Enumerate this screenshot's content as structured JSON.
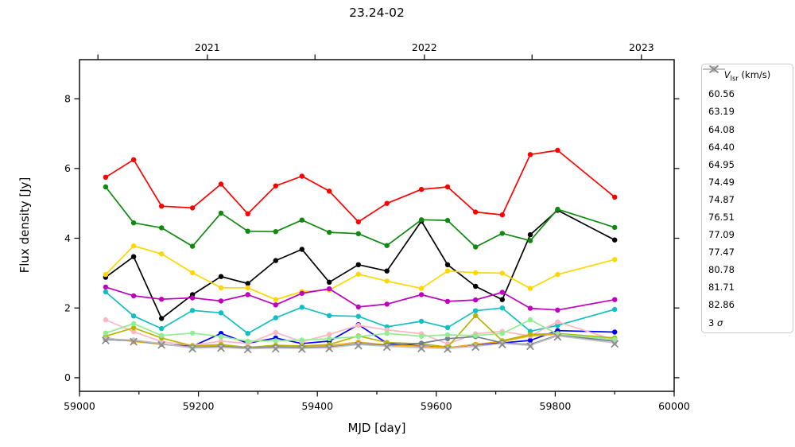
{
  "figure": {
    "title": "23.24-02",
    "xlabel": "MJD [day]",
    "ylabel": "Flux density [Jy]"
  },
  "legend": {
    "title_var": "V",
    "title_sub": "lsr",
    "title_unit": " (km/s)",
    "sigma_prefix": "3 ",
    "sigma_symbol": "σ"
  },
  "chart_data": {
    "type": "line",
    "title": "23.24-02",
    "xlabel": "MJD [day]",
    "ylabel": "Flux density [Jy]",
    "xlim": [
      59000,
      60000
    ],
    "ylim": [
      -0.39,
      9.12
    ],
    "grid": false,
    "legend_position": "outside-right",
    "legend_title": "V_lsr (km/s)",
    "x_ticks": {
      "major": [
        59000,
        59200,
        59400,
        59600,
        59800,
        60000
      ],
      "minor": [
        59100,
        59300,
        59500,
        59700,
        59900
      ]
    },
    "y_ticks": [
      0,
      2,
      4,
      6,
      8
    ],
    "top_axis_ticks": {
      "values": [
        59031,
        59215,
        59396,
        59580,
        59761,
        59945
      ],
      "labels": [
        "",
        "2021",
        "",
        "2022",
        "",
        "2023"
      ]
    },
    "x": [
      59044,
      59091,
      59138,
      59190,
      59238,
      59283,
      59330,
      59374,
      59420,
      59469,
      59517,
      59575,
      59619,
      59666,
      59711,
      59758,
      59804,
      59900
    ],
    "series": [
      {
        "label": "60.56",
        "color": "#000000",
        "marker": "circle",
        "line": true,
        "values": [
          2.88,
          3.47,
          1.7,
          2.38,
          2.9,
          2.7,
          3.36,
          3.68,
          2.74,
          3.24,
          3.06,
          4.49,
          3.24,
          2.62,
          2.24,
          4.1,
          4.8,
          3.95
        ]
      },
      {
        "label": "63.19",
        "color": "#0000ff",
        "marker": "circle",
        "line": true,
        "values": [
          1.1,
          1.06,
          0.96,
          0.9,
          1.27,
          0.99,
          1.14,
          0.98,
          1.05,
          1.52,
          0.99,
          0.91,
          0.86,
          0.95,
          1.0,
          1.07,
          1.35,
          1.31
        ]
      },
      {
        "label": "64.08",
        "color": "#ff0000",
        "marker": "circle",
        "line": true,
        "values": [
          5.75,
          6.25,
          4.92,
          4.87,
          5.55,
          4.7,
          5.5,
          5.78,
          5.35,
          4.47,
          5.0,
          5.4,
          5.47,
          4.75,
          4.67,
          6.4,
          6.52,
          5.18
        ]
      },
      {
        "label": "64.40",
        "color": "#0f8a0f",
        "marker": "circle",
        "line": true,
        "values": [
          5.47,
          4.44,
          4.3,
          3.77,
          4.72,
          4.2,
          4.19,
          4.52,
          4.17,
          4.13,
          3.79,
          4.53,
          4.51,
          3.75,
          4.14,
          3.93,
          4.83,
          4.31
        ]
      },
      {
        "label": "64.95",
        "color": "#ffd700",
        "marker": "circle",
        "line": true,
        "values": [
          2.96,
          3.78,
          3.55,
          3.01,
          2.58,
          2.58,
          2.24,
          2.47,
          2.51,
          2.97,
          2.77,
          2.56,
          3.06,
          3.01,
          3.0,
          2.56,
          2.96,
          3.39
        ]
      },
      {
        "label": "74.49",
        "color": "#10bfc4",
        "marker": "circle",
        "line": true,
        "values": [
          2.46,
          1.77,
          1.41,
          1.93,
          1.86,
          1.27,
          1.72,
          2.02,
          1.78,
          1.76,
          1.46,
          1.62,
          1.44,
          1.92,
          2.0,
          1.33,
          1.5,
          1.96
        ]
      },
      {
        "label": "74.87",
        "color": "#bf00bf",
        "marker": "circle",
        "line": true,
        "values": [
          2.6,
          2.35,
          2.25,
          2.29,
          2.2,
          2.38,
          2.09,
          2.42,
          2.55,
          2.03,
          2.11,
          2.38,
          2.19,
          2.23,
          2.45,
          1.99,
          1.94,
          2.24
        ]
      },
      {
        "label": "76.51",
        "color": "#ffa500",
        "marker": "circle",
        "line": true,
        "values": [
          1.14,
          1.04,
          0.96,
          0.88,
          0.93,
          0.86,
          0.91,
          0.88,
          0.92,
          1.02,
          0.94,
          0.9,
          0.86,
          0.96,
          1.04,
          1.2,
          1.25,
          1.13
        ]
      },
      {
        "label": "77.09",
        "color": "#ffb6c1",
        "marker": "circle",
        "line": true,
        "values": [
          1.66,
          1.32,
          1.03,
          0.93,
          1.05,
          0.98,
          1.3,
          1.03,
          1.24,
          1.5,
          1.37,
          1.26,
          0.97,
          1.26,
          1.33,
          1.2,
          1.6,
          1.08
        ]
      },
      {
        "label": "77.47",
        "color": "#b8b400",
        "marker": "circle",
        "line": true,
        "values": [
          1.19,
          1.43,
          1.14,
          0.91,
          0.95,
          0.87,
          0.93,
          0.91,
          0.95,
          1.2,
          1.01,
          0.97,
          0.88,
          1.78,
          1.06,
          1.24,
          1.27,
          1.14
        ]
      },
      {
        "label": "80.78",
        "color": "#708090",
        "marker": "circle",
        "line": true,
        "values": [
          1.1,
          1.07,
          0.97,
          0.86,
          0.89,
          0.85,
          0.88,
          0.86,
          0.88,
          0.97,
          0.93,
          0.99,
          1.12,
          1.18,
          1.0,
          0.95,
          1.22,
          1.05
        ]
      },
      {
        "label": "81.71",
        "color": "#90ee90",
        "marker": "circle",
        "line": true,
        "values": [
          1.28,
          1.55,
          1.21,
          1.28,
          1.18,
          1.05,
          1.06,
          1.08,
          1.12,
          1.18,
          1.27,
          1.19,
          1.23,
          1.21,
          1.27,
          1.66,
          1.25,
          1.1
        ]
      },
      {
        "label": "82.86",
        "color": "#c2c2c2",
        "marker": "circle",
        "line": true,
        "values": [
          1.12,
          1.08,
          0.98,
          0.85,
          0.87,
          0.83,
          0.85,
          0.84,
          0.86,
          0.95,
          0.9,
          0.86,
          0.84,
          0.9,
          0.98,
          0.93,
          1.2,
          1.0
        ]
      },
      {
        "label": "3 σ",
        "color": "#8a8a8a",
        "marker": "x",
        "line": false,
        "values": [
          1.07,
          1.03,
          0.94,
          0.83,
          0.85,
          0.81,
          0.83,
          0.82,
          0.84,
          0.92,
          0.88,
          0.84,
          0.82,
          0.88,
          0.95,
          0.9,
          1.17,
          0.97
        ]
      }
    ]
  }
}
